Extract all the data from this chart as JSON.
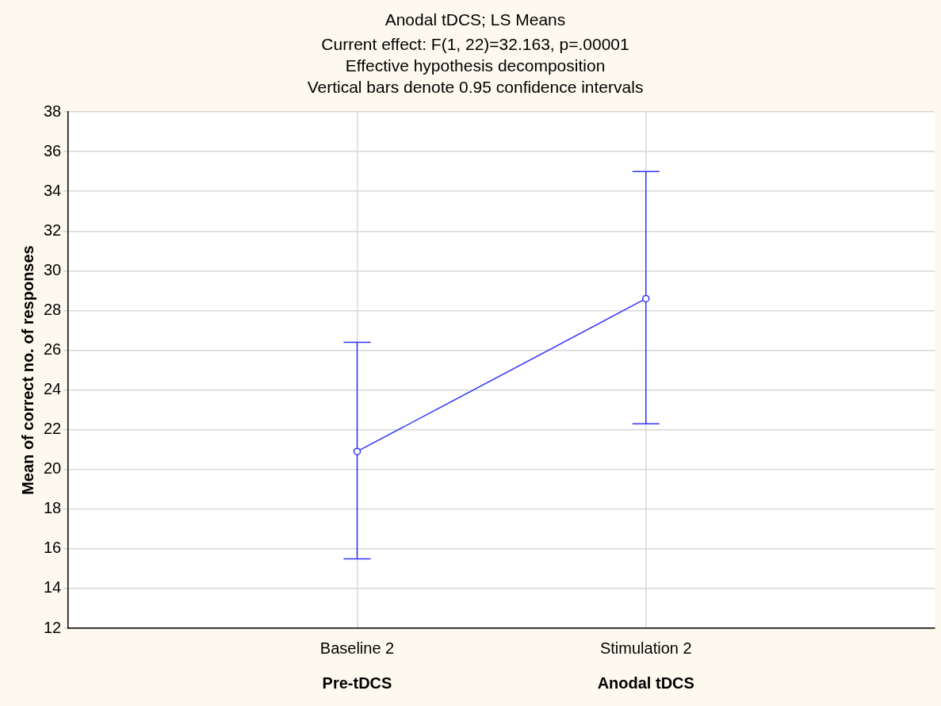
{
  "chart_data": {
    "type": "line",
    "title": "Anodal tDCS; LS Means",
    "subtitle": "Current effect: F(1, 22)=32.163, p=.00001\nEffective hypothesis decomposition\nVertical bars denote 0.95 confidence intervals",
    "ylabel": "Mean of correct no. of responses",
    "categories": [
      "Baseline 2",
      "Stimulation 2"
    ],
    "series": [
      {
        "color": "#3333ff",
        "values": [
          20.9,
          28.6
        ],
        "errors": [
          [
            15.5,
            26.4
          ],
          [
            22.3,
            35.0
          ]
        ]
      }
    ],
    "annotations": [
      "Pre-tDCS",
      "Anodal tDCS"
    ],
    "ylim": [
      12,
      38
    ],
    "yticks": [
      12,
      14,
      16,
      18,
      20,
      22,
      24,
      26,
      28,
      30,
      32,
      34,
      36,
      38
    ],
    "grid": true,
    "legend": false,
    "marker": "circle",
    "line_style": "solid"
  }
}
